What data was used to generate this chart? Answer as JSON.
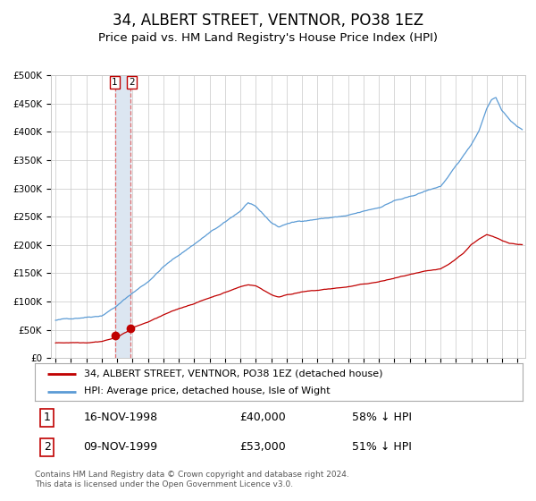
{
  "title": "34, ALBERT STREET, VENTNOR, PO38 1EZ",
  "subtitle": "Price paid vs. HM Land Registry's House Price Index (HPI)",
  "title_fontsize": 12,
  "subtitle_fontsize": 9.5,
  "ylabel_ticks": [
    "£0",
    "£50K",
    "£100K",
    "£150K",
    "£200K",
    "£250K",
    "£300K",
    "£350K",
    "£400K",
    "£450K",
    "£500K"
  ],
  "ylabel_values": [
    0,
    50000,
    100000,
    150000,
    200000,
    250000,
    300000,
    350000,
    400000,
    450000,
    500000
  ],
  "xlim_start": 1994.7,
  "xlim_end": 2025.5,
  "ylim_min": 0,
  "ylim_max": 500000,
  "purchase1_date": 1998.878,
  "purchase1_price": 40000,
  "purchase2_date": 1999.856,
  "purchase2_price": 53000,
  "legend_line1": "34, ALBERT STREET, VENTNOR, PO38 1EZ (detached house)",
  "legend_line2": "HPI: Average price, detached house, Isle of Wight",
  "table_row1_num": "1",
  "table_row1_date": "16-NOV-1998",
  "table_row1_price": "£40,000",
  "table_row1_hpi": "58% ↓ HPI",
  "table_row2_num": "2",
  "table_row2_date": "09-NOV-1999",
  "table_row2_price": "£53,000",
  "table_row2_hpi": "51% ↓ HPI",
  "footer": "Contains HM Land Registry data © Crown copyright and database right 2024.\nThis data is licensed under the Open Government Licence v3.0.",
  "hpi_color": "#5b9bd5",
  "price_color": "#c00000",
  "dot_color": "#c00000",
  "background_color": "#ffffff",
  "grid_color": "#c8c8c8",
  "shade_color": "#dce6f1",
  "vline_color": "#e06060"
}
